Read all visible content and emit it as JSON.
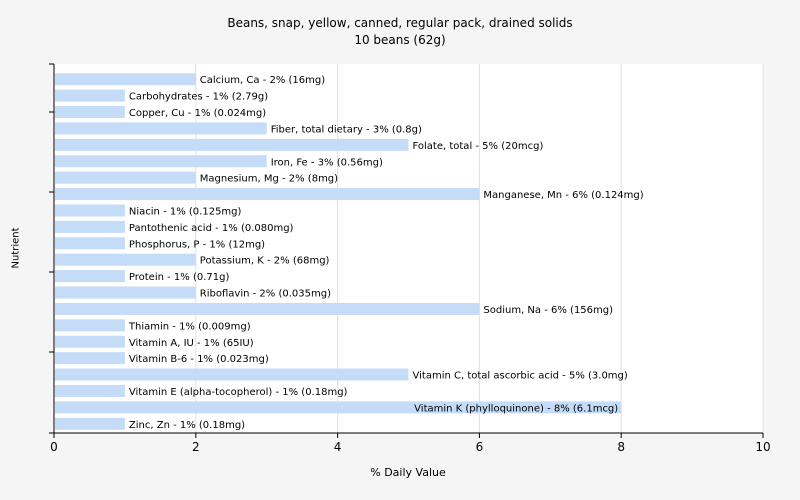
{
  "chart_data": {
    "type": "bar",
    "orientation": "horizontal",
    "title": "Beans, snap, yellow, canned, regular pack, drained solids",
    "subtitle": "10 beans (62g)",
    "xlabel": "% Daily Value",
    "ylabel": "Nutrient",
    "xlim": [
      0,
      10
    ],
    "xticks": [
      "0",
      "2",
      "4",
      "6",
      "8",
      "10"
    ],
    "grid": "vertical",
    "bar_color": "#c4dcf8",
    "categories": [
      "Calcium, Ca",
      "Carbohydrates",
      "Copper, Cu",
      "Fiber, total dietary",
      "Folate, total",
      "Iron, Fe",
      "Magnesium, Mg",
      "Manganese, Mn",
      "Niacin",
      "Pantothenic acid",
      "Phosphorus, P",
      "Potassium, K",
      "Protein",
      "Riboflavin",
      "Sodium, Na",
      "Thiamin",
      "Vitamin A, IU",
      "Vitamin B-6",
      "Vitamin C, total ascorbic acid",
      "Vitamin E (alpha-tocopherol)",
      "Vitamin K (phylloquinone)",
      "Zinc, Zn"
    ],
    "values": [
      2,
      1,
      1,
      3,
      5,
      3,
      2,
      6,
      1,
      1,
      1,
      2,
      1,
      2,
      6,
      1,
      1,
      1,
      5,
      1,
      8,
      1
    ],
    "labels": [
      "Calcium, Ca - 2% (16mg)",
      "Carbohydrates - 1% (2.79g)",
      "Copper, Cu - 1% (0.024mg)",
      "Fiber, total dietary - 3% (0.8g)",
      "Folate, total - 5% (20mcg)",
      "Iron, Fe - 3% (0.56mg)",
      "Magnesium, Mg - 2% (8mg)",
      "Manganese, Mn - 6% (0.124mg)",
      "Niacin - 1% (0.125mg)",
      "Pantothenic acid - 1% (0.080mg)",
      "Phosphorus, P - 1% (12mg)",
      "Potassium, K - 2% (68mg)",
      "Protein - 1% (0.71g)",
      "Riboflavin - 2% (0.035mg)",
      "Sodium, Na - 6% (156mg)",
      "Thiamin - 1% (0.009mg)",
      "Vitamin A, IU - 1% (65IU)",
      "Vitamin B-6 - 1% (0.023mg)",
      "Vitamin C, total ascorbic acid - 5% (3.0mg)",
      "Vitamin E (alpha-tocopherol) - 1% (0.18mg)",
      "Vitamin K (phylloquinone) - 8% (6.1mcg)",
      "Zinc, Zn - 1% (0.18mg)"
    ]
  }
}
